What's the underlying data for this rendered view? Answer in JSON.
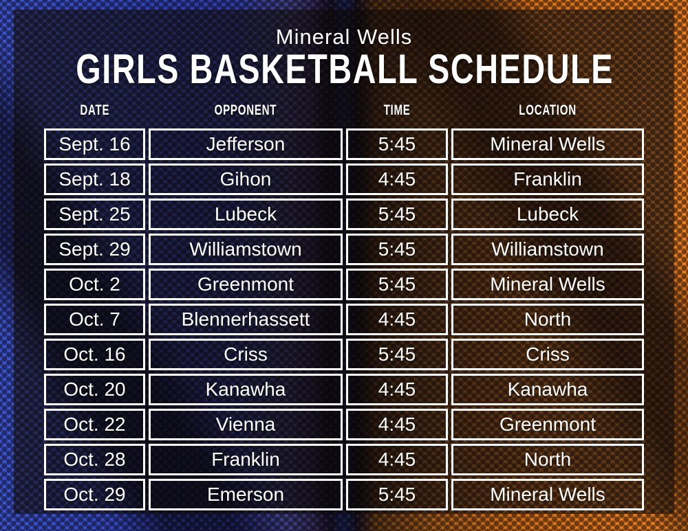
{
  "title": {
    "school": "Mineral Wells",
    "main": "GIRLS BASKETBALL SCHEDULE"
  },
  "table": {
    "columns": [
      "DATE",
      "OPPONENT",
      "TIME",
      "LOCATION"
    ],
    "rows": [
      [
        "Sept. 16",
        "Jefferson",
        "5:45",
        "Mineral Wells"
      ],
      [
        "Sept. 18",
        "Gihon",
        "4:45",
        "Franklin"
      ],
      [
        "Sept. 25",
        "Lubeck",
        "5:45",
        "Lubeck"
      ],
      [
        "Sept. 29",
        "Williamstown",
        "5:45",
        "Williamstown"
      ],
      [
        "Oct. 2",
        "Greenmont",
        "5:45",
        "Mineral Wells"
      ],
      [
        "Oct. 7",
        "Blennerhassett",
        "4:45",
        "North"
      ],
      [
        "Oct. 16",
        "Criss",
        "5:45",
        "Criss"
      ],
      [
        "Oct. 20",
        "Kanawha",
        "4:45",
        "Kanawha"
      ],
      [
        "Oct. 22",
        "Vienna",
        "4:45",
        "Greenmont"
      ],
      [
        "Oct. 28",
        "Franklin",
        "4:45",
        "North"
      ],
      [
        "Oct. 29",
        "Emerson",
        "5:45",
        "Mineral Wells"
      ]
    ]
  },
  "colors": {
    "blue_side": "#2c44c4",
    "orange_side": "#f5831d",
    "cell_border": "#ffffff",
    "text": "#ffffff"
  }
}
